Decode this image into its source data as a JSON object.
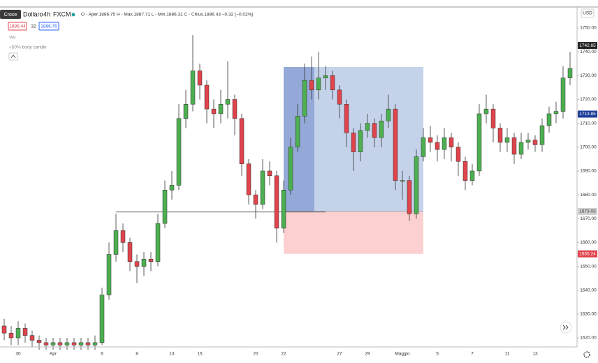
{
  "chart_data": {
    "type": "candlestick",
    "tooltip": "Croce",
    "symbol": "Dollaro",
    "interval": "4h",
    "source": "FXCM",
    "ohlc_legend": "O - Aper.1886.75 H - Max.1887.71 L - Min.1886.31 C - Chius.1886.43 −0.32 (−0.02%)",
    "bid": "1886.44",
    "spread": "32",
    "ask": "1886.76",
    "indicators": [
      "Vol",
      "+50% body candle"
    ],
    "currency": "USD",
    "up_color": "#4caf50",
    "down_color": "#e0444c",
    "grid": false,
    "categories": [
      null,
      null,
      "30",
      null,
      null,
      null,
      null,
      "Apr",
      null,
      null,
      null,
      null,
      null,
      null,
      "6",
      null,
      null,
      null,
      null,
      "8",
      null,
      null,
      null,
      null,
      "13",
      null,
      null,
      null,
      "15",
      null,
      null,
      null,
      null,
      null,
      null,
      null,
      "20",
      null,
      null,
      null,
      "22",
      null,
      null,
      null,
      null,
      null,
      null,
      null,
      "27",
      null,
      null,
      null,
      "29",
      null,
      null,
      null,
      null,
      "Maggio",
      null,
      null,
      null,
      null,
      "5",
      null,
      null,
      null,
      null,
      "7",
      null,
      null,
      null,
      null,
      "11",
      null,
      null,
      null,
      "13",
      null,
      null,
      null,
      null,
      null
    ],
    "open": [
      1625,
      1622,
      1620,
      1624,
      1621,
      1619,
      1618,
      1617,
      1618,
      1617,
      1618,
      1617,
      1618,
      1617,
      1618,
      1638,
      1655,
      1665,
      1660,
      1652,
      1650,
      1653,
      1652,
      1668,
      1682,
      1684,
      1712,
      1718,
      1732,
      1726,
      1716,
      1714,
      1718,
      1720,
      1712,
      1693,
      1680,
      1676,
      1690,
      1688,
      1666,
      1682,
      1700,
      1713,
      1728,
      1724,
      1729,
      1730,
      1724,
      1718,
      1706,
      1698,
      1707,
      1710,
      1704,
      1711,
      1716,
      1686,
      1686,
      1672,
      1696,
      1704,
      1702,
      1699,
      1704,
      1700,
      1694,
      1686,
      1690,
      1714,
      1716,
      1708,
      1702,
      1704,
      1697,
      1702,
      1703,
      1701,
      1709,
      1714,
      1715,
      1729
    ],
    "high": [
      1628,
      1625,
      1627,
      1626,
      1623,
      1621,
      1620,
      1620,
      1620,
      1620,
      1620,
      1620,
      1620,
      1621,
      1641,
      1660,
      1672,
      1668,
      1662,
      1655,
      1656,
      1656,
      1672,
      1686,
      1690,
      1718,
      1724,
      1747,
      1735,
      1728,
      1720,
      1724,
      1736,
      1722,
      1714,
      1695,
      1682,
      1695,
      1694,
      1690,
      1686,
      1704,
      1718,
      1735,
      1738,
      1740,
      1734,
      1732,
      1726,
      1720,
      1708,
      1710,
      1714,
      1712,
      1714,
      1722,
      1718,
      1690,
      1688,
      1699,
      1708,
      1709,
      1705,
      1708,
      1706,
      1702,
      1696,
      1693,
      1718,
      1722,
      1718,
      1710,
      1708,
      1706,
      1706,
      1706,
      1705,
      1712,
      1717,
      1719,
      1734,
      1740
    ],
    "low": [
      1619,
      1617,
      1617,
      1618,
      1616,
      1615,
      1615,
      1615,
      1615,
      1615,
      1615,
      1615,
      1615,
      1615,
      1617,
      1636,
      1652,
      1656,
      1648,
      1643,
      1646,
      1648,
      1650,
      1666,
      1678,
      1682,
      1708,
      1715,
      1720,
      1710,
      1708,
      1710,
      1712,
      1705,
      1688,
      1676,
      1670,
      1674,
      1684,
      1660,
      1664,
      1680,
      1698,
      1710,
      1720,
      1720,
      1724,
      1720,
      1712,
      1700,
      1690,
      1694,
      1704,
      1700,
      1700,
      1708,
      1682,
      1678,
      1669,
      1670,
      1694,
      1698,
      1694,
      1695,
      1694,
      1688,
      1682,
      1684,
      1688,
      1710,
      1702,
      1698,
      1698,
      1693,
      1695,
      1699,
      1698,
      1698,
      1706,
      1710,
      1712,
      1726
    ],
    "close": [
      1622,
      1620,
      1624,
      1621,
      1619,
      1618,
      1617,
      1618,
      1617,
      1618,
      1617,
      1618,
      1617,
      1618,
      1638,
      1655,
      1665,
      1660,
      1652,
      1650,
      1653,
      1652,
      1668,
      1682,
      1684,
      1712,
      1718,
      1732,
      1726,
      1716,
      1714,
      1718,
      1720,
      1712,
      1693,
      1680,
      1676,
      1690,
      1688,
      1666,
      1682,
      1700,
      1713,
      1728,
      1724,
      1729,
      1730,
      1724,
      1718,
      1706,
      1698,
      1707,
      1710,
      1704,
      1711,
      1716,
      1686,
      1686,
      1672,
      1696,
      1704,
      1702,
      1699,
      1704,
      1700,
      1694,
      1686,
      1690,
      1714,
      1716,
      1708,
      1702,
      1704,
      1697,
      1702,
      1703,
      1701,
      1709,
      1714,
      1715,
      1729,
      1733
    ],
    "ylim": [
      1616.2,
      1758.2
    ],
    "yticks": [
      {
        "value": 1620,
        "label": "1620.00"
      },
      {
        "value": 1630,
        "label": "1630.00"
      },
      {
        "value": 1640,
        "label": "1640.00"
      },
      {
        "value": 1650,
        "label": "1650.00"
      },
      {
        "value": 1660,
        "label": "1660.00"
      },
      {
        "value": 1670,
        "label": "1670.00"
      },
      {
        "value": 1680,
        "label": "1680.00"
      },
      {
        "value": 1690,
        "label": "1690.00"
      },
      {
        "value": 1700,
        "label": "1700.00"
      },
      {
        "value": 1710,
        "label": "1710.00"
      },
      {
        "value": 1720,
        "label": "1720.00"
      },
      {
        "value": 1730,
        "label": "1730.00"
      },
      {
        "value": 1740,
        "label": "1740.00"
      },
      {
        "value": 1750,
        "label": "1750.00"
      }
    ],
    "price_labels": [
      {
        "value": 1742.65,
        "color": "#222222"
      },
      {
        "value": 1713.85,
        "color": "#1f3f99"
      },
      {
        "value": 1673.03,
        "color": "#cfcfcf"
      },
      {
        "value": 1655.24,
        "color": "#e0444c"
      }
    ],
    "position": {
      "entry": 1673.03,
      "target": 1733.6,
      "stop": 1655.24,
      "start": 40,
      "end": 60,
      "profit_color": "#c5d3ea",
      "loss_color": "#fcd0d0"
    },
    "level_line": {
      "value": 1672.8,
      "from": 16,
      "to": 46
    }
  }
}
